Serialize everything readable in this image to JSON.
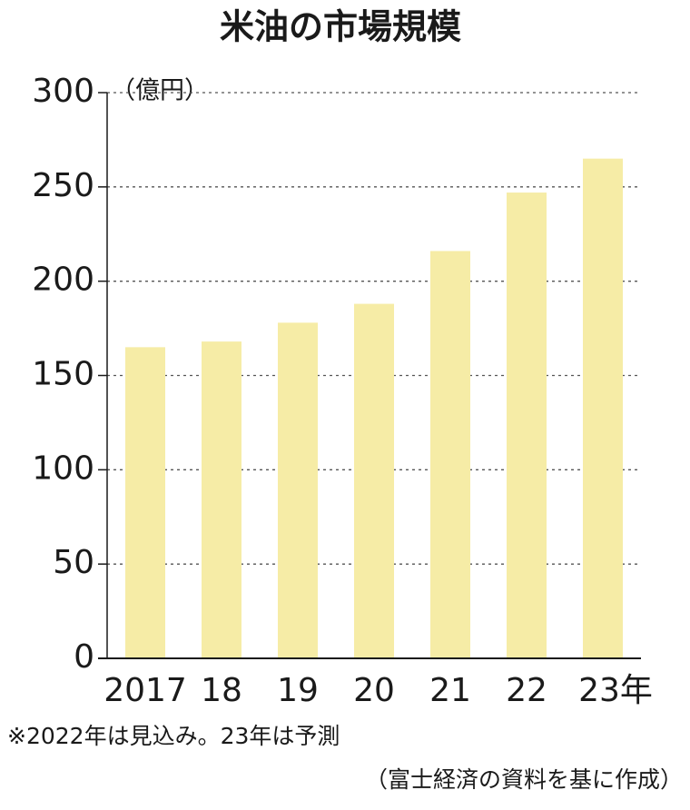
{
  "chart_data": {
    "type": "bar",
    "title": "米油の市場規模",
    "y_unit_label": "（億円）",
    "categories": [
      "2017",
      "18",
      "19",
      "20",
      "21",
      "22",
      "23年"
    ],
    "values": [
      165,
      168,
      178,
      188,
      216,
      247,
      265
    ],
    "color": "#f6eca6",
    "ylim": [
      0,
      300
    ],
    "yticks": [
      0,
      50,
      100,
      150,
      200,
      250,
      300
    ],
    "grid": true,
    "notes": [
      "※2022年は見込み。23年は予測",
      "（富士経済の資料を基に作成）"
    ]
  }
}
